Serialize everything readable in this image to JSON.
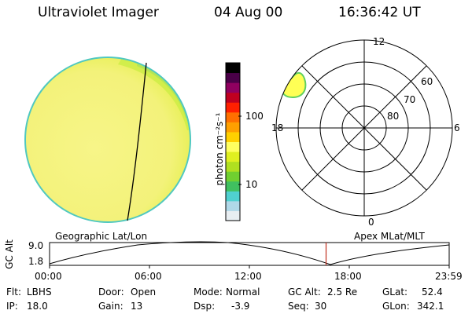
{
  "header": {
    "instrument": "Ultraviolet Imager",
    "date": "04 Aug 00",
    "time": "16:36:42 UT"
  },
  "colorbar": {
    "unit_label": "photon cm⁻²s⁻¹",
    "tick_labels": [
      "100",
      "10"
    ],
    "colors": [
      "#e8eef2",
      "#b0d8e8",
      "#50d0d0",
      "#40c060",
      "#70d030",
      "#b0e020",
      "#e0f020",
      "#ffff60",
      "#ffd000",
      "#ffa000",
      "#ff7000",
      "#ff2000",
      "#c00020",
      "#900060",
      "#4a0048",
      "#000000"
    ]
  },
  "polar_plot": {
    "mlt_labels": {
      "top": "12",
      "left": "18",
      "right": "6",
      "bottom": "0"
    },
    "lat_labels": [
      "60",
      "70",
      "80"
    ]
  },
  "orbit_panel": {
    "left_label": "Geographic Lat/Lon",
    "right_label": "Apex MLat/MLT",
    "y_axis_title": "GC Alt",
    "y_ticks": [
      "9.0",
      "1.8"
    ],
    "x_ticks": [
      "00:00",
      "06:00",
      "12:00",
      "18:00",
      "23:59"
    ],
    "current_time_fraction": 0.692
  },
  "info": {
    "flt_label": "Flt:",
    "flt_value": "LBHS",
    "ip_label": "IP:",
    "ip_value": "18.0",
    "door_label": "Door:",
    "door_value": "Open",
    "gain_label": "Gain:",
    "gain_value": "13",
    "mode_label": "Mode:",
    "mode_value": "Normal",
    "dsp_label": "Dsp:",
    "dsp_value": "-3.9",
    "gcalt_label": "GC Alt:",
    "gcalt_value": "2.5 Re",
    "seq_label": "Seq:",
    "seq_value": "30",
    "glat_label": "GLat:",
    "glat_value": "52.4",
    "glon_label": "GLon:",
    "glon_value": "342.1"
  },
  "colors": {
    "disk_fill": "#f3f37a",
    "disk_edge": "#50c8c0",
    "limb_glow": "#c8ec40",
    "marker": "#c03020",
    "oval_fill": "#ffff55",
    "oval_edge": "#60d060"
  }
}
